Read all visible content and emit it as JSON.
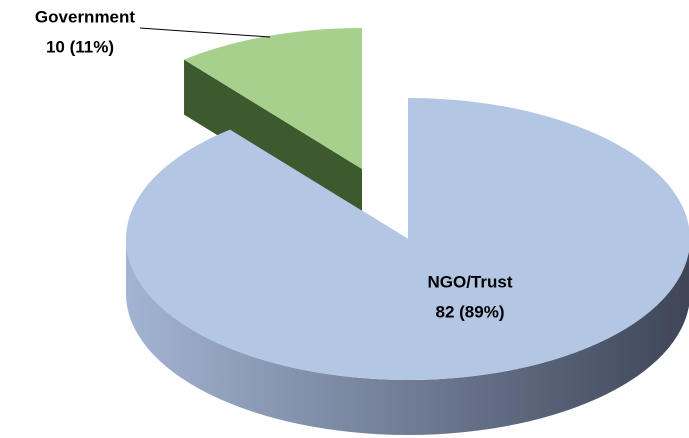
{
  "chart_data": {
    "type": "pie",
    "categories": [
      "Government",
      "NGO/Trust"
    ],
    "values": [
      10,
      82
    ],
    "value_labels": [
      "10 (11%)",
      "82 (89%)"
    ],
    "colors": [
      "#a8d08d",
      "#b3c6e4"
    ],
    "side_colors": [
      "#3d5a2e",
      "#4a5368"
    ]
  }
}
